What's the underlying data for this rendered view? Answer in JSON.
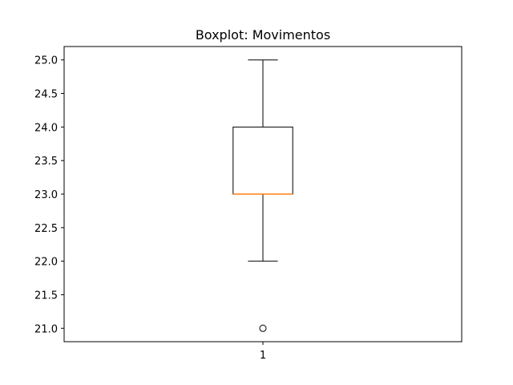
{
  "chart_data": {
    "type": "boxplot",
    "title": "Boxplot: Movimentos",
    "xlabel": "",
    "ylabel": "",
    "categories": [
      "1"
    ],
    "boxes": [
      {
        "category": "1",
        "whisker_low": 22.0,
        "q1": 23.0,
        "median": 23.0,
        "q3": 24.0,
        "whisker_high": 25.0,
        "outliers": [
          21.0
        ]
      }
    ],
    "ylim": [
      20.8,
      25.2
    ],
    "yticks": [
      21.0,
      21.5,
      22.0,
      22.5,
      23.0,
      23.5,
      24.0,
      24.5,
      25.0
    ],
    "grid": false,
    "colors": {
      "box": "#000000",
      "median": "#ff7f0e",
      "outlier": "#000000"
    }
  }
}
